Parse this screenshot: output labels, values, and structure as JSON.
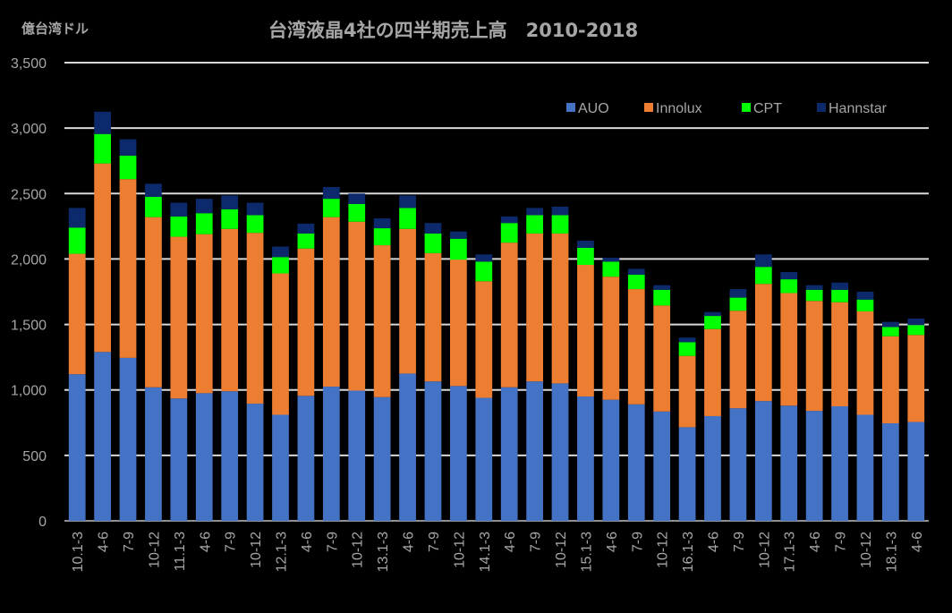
{
  "chart_data": {
    "type": "bar",
    "stacked": true,
    "title": "台湾液晶4社の四半期売上高　2010-2018",
    "unit_label": "億台湾ドル",
    "ylim": [
      0,
      3500
    ],
    "y_ticks": [
      "0",
      "500",
      "1,000",
      "1,500",
      "2,000",
      "2,500",
      "3,000",
      "3,500"
    ],
    "grid": true,
    "legend_position": "top-right",
    "categories": [
      "10.1-3",
      "4-6",
      "7-9",
      "10-12",
      "11.1-3",
      "4-6",
      "7-9",
      "10-12",
      "12.1-3",
      "4-6",
      "7-9",
      "10-12",
      "13.1-3",
      "4-6",
      "7-9",
      "10-12",
      "14.1-3",
      "4-6",
      "7-9",
      "10-12",
      "15.1-3",
      "4-6",
      "7-9",
      "10-12",
      "16.1-3",
      "4-6",
      "7-9",
      "10-12",
      "17.1-3",
      "4-6",
      "7-9",
      "10-12",
      "18.1-3",
      "4-6"
    ],
    "series": [
      {
        "name": "AUO",
        "color": "#4472c4",
        "values": [
          1120,
          1290,
          1245,
          1020,
          935,
          975,
          990,
          895,
          810,
          955,
          1025,
          995,
          945,
          1125,
          1065,
          1030,
          940,
          1020,
          1065,
          1050,
          950,
          925,
          890,
          835,
          715,
          800,
          860,
          915,
          880,
          840,
          875,
          810,
          745,
          755
        ]
      },
      {
        "name": "Innolux",
        "color": "#ed7d31",
        "values": [
          920,
          1440,
          1365,
          1300,
          1235,
          1215,
          1240,
          1305,
          1080,
          1125,
          1295,
          1290,
          1160,
          1105,
          980,
          965,
          890,
          1105,
          1130,
          1145,
          1005,
          940,
          880,
          810,
          545,
          665,
          745,
          895,
          860,
          840,
          795,
          790,
          665,
          665
        ]
      },
      {
        "name": "CPT",
        "color": "#00ff00",
        "values": [
          200,
          225,
          180,
          155,
          155,
          160,
          150,
          135,
          125,
          115,
          140,
          135,
          130,
          160,
          150,
          160,
          150,
          150,
          140,
          140,
          130,
          115,
          110,
          120,
          105,
          100,
          100,
          130,
          105,
          85,
          95,
          90,
          70,
          75
        ]
      },
      {
        "name": "Hannstar",
        "color": "#0c2a6b",
        "values": [
          150,
          170,
          125,
          100,
          105,
          110,
          105,
          95,
          80,
          75,
          90,
          80,
          75,
          95,
          80,
          55,
          55,
          50,
          55,
          65,
          55,
          30,
          45,
          35,
          35,
          30,
          65,
          95,
          55,
          35,
          55,
          60,
          40,
          50
        ]
      }
    ]
  }
}
